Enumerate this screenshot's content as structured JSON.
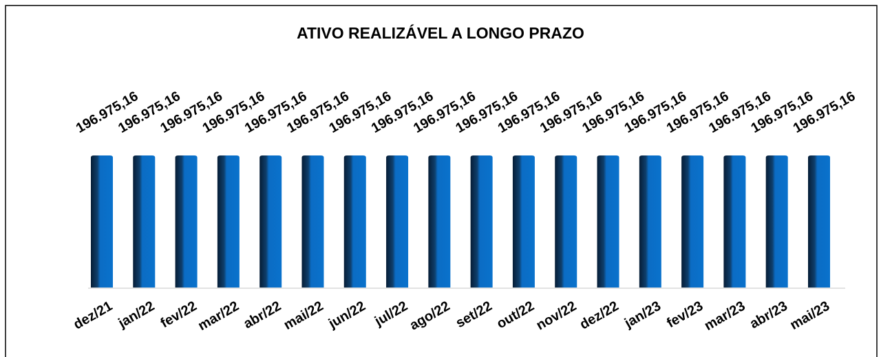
{
  "chart_data": {
    "type": "bar",
    "title": "ATIVO REALIZÁVEL A LONGO PRAZO",
    "categories": [
      "dez/21",
      "jan/22",
      "fev/22",
      "mar/22",
      "abr/22",
      "mai/22",
      "jun/22",
      "jul/22",
      "ago/22",
      "set/22",
      "out/22",
      "nov/22",
      "dez/22",
      "jan/23",
      "fev/23",
      "mar/23",
      "abr/23",
      "mai/23"
    ],
    "values": [
      196975.16,
      196975.16,
      196975.16,
      196975.16,
      196975.16,
      196975.16,
      196975.16,
      196975.16,
      196975.16,
      196975.16,
      196975.16,
      196975.16,
      196975.16,
      196975.16,
      196975.16,
      196975.16,
      196975.16,
      196975.16
    ],
    "value_labels": [
      "196.975,16",
      "196.975,16",
      "196.975,16",
      "196.975,16",
      "196.975,16",
      "196.975,16",
      "196.975,16",
      "196.975,16",
      "196.975,16",
      "196.975,16",
      "196.975,16",
      "196.975,16",
      "196.975,16",
      "196.975,16",
      "196.975,16",
      "196.975,16",
      "196.975,16",
      "196.975,16"
    ],
    "color": "#0b6cc4"
  }
}
